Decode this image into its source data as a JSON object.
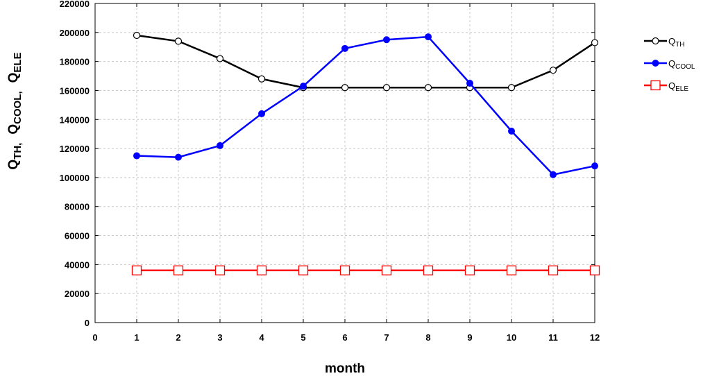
{
  "chart_data": {
    "type": "line",
    "xlabel": "month",
    "ylabel": {
      "parts": [
        {
          "main": "Q",
          "sub": "TH",
          "sep": ","
        },
        {
          "main": "Q",
          "sub": "COOL",
          "sep": ","
        },
        {
          "main": "Q",
          "sub": "ELE",
          "sep": ""
        }
      ]
    },
    "xlim": [
      0,
      12
    ],
    "ylim": [
      0,
      220000
    ],
    "x_ticks": [
      0,
      1,
      2,
      3,
      4,
      5,
      6,
      7,
      8,
      9,
      10,
      11,
      12
    ],
    "y_ticks": [
      0,
      20000,
      40000,
      60000,
      80000,
      100000,
      120000,
      140000,
      160000,
      180000,
      200000,
      220000
    ],
    "grid": true,
    "legend_position": "right",
    "x": [
      1,
      2,
      3,
      4,
      5,
      6,
      7,
      8,
      9,
      10,
      11,
      12
    ],
    "series": [
      {
        "name_main": "Q",
        "name_sub": "TH",
        "color": "#000000",
        "marker": "open-circle",
        "values": [
          198000,
          194000,
          182000,
          168000,
          162000,
          162000,
          162000,
          162000,
          162000,
          162000,
          174000,
          193000
        ]
      },
      {
        "name_main": "Q",
        "name_sub": "COOL",
        "color": "#0000ff",
        "marker": "filled-circle",
        "values": [
          115000,
          114000,
          122000,
          144000,
          163000,
          189000,
          195000,
          197000,
          165000,
          132000,
          102000,
          108000
        ]
      },
      {
        "name_main": "Q",
        "name_sub": "ELE",
        "color": "#ff0000",
        "marker": "open-square",
        "values": [
          36000,
          36000,
          36000,
          36000,
          36000,
          36000,
          36000,
          36000,
          36000,
          36000,
          36000,
          36000
        ]
      }
    ]
  }
}
